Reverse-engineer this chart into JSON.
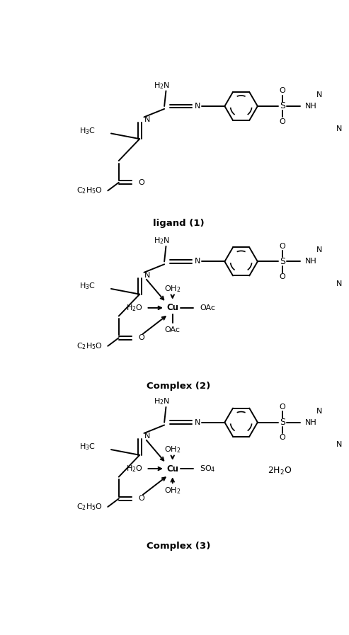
{
  "figsize": [
    4.93,
    8.97
  ],
  "dpi": 100,
  "background": "#ffffff",
  "label1": "ligand (1)",
  "label2": "Complex (2)",
  "label3": "Complex (3)",
  "lw": 1.4,
  "fs": 8.0,
  "fs_label": 9.5
}
